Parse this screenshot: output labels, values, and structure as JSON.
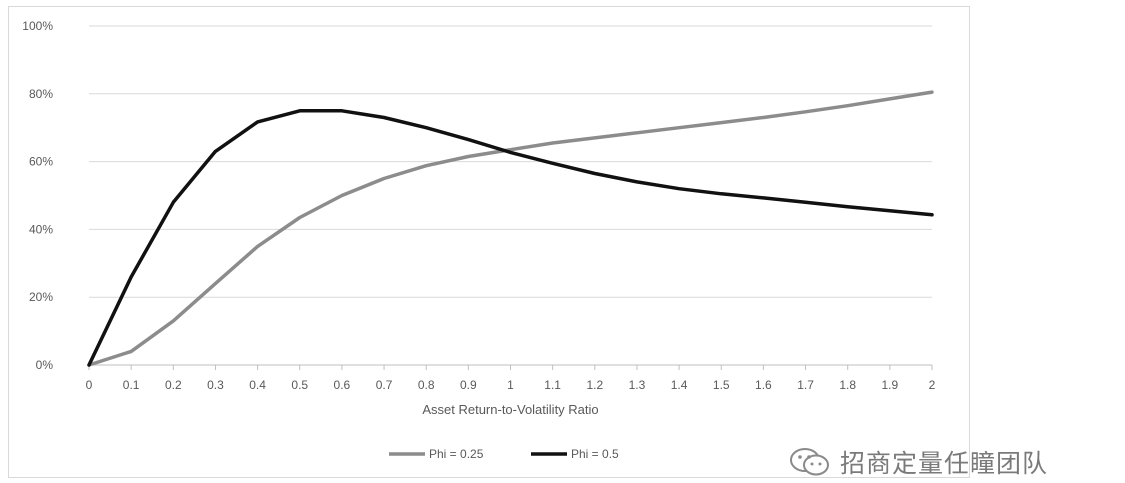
{
  "chart_data": {
    "type": "line",
    "title": "",
    "xlabel": "Asset Return-to-Volatility Ratio",
    "ylabel": "",
    "x": [
      0,
      0.1,
      0.2,
      0.3,
      0.4,
      0.5,
      0.6,
      0.7,
      0.8,
      0.9,
      1,
      1.1,
      1.2,
      1.3,
      1.4,
      1.5,
      1.6,
      1.7,
      1.8,
      1.9,
      2
    ],
    "x_tick_labels": [
      "0",
      "0.1",
      "0.2",
      "0.3",
      "0.4",
      "0.5",
      "0.6",
      "0.7",
      "0.8",
      "0.9",
      "1",
      "1.1",
      "1.2",
      "1.3",
      "1.4",
      "1.5",
      "1.6",
      "1.7",
      "1.8",
      "1.9",
      "2"
    ],
    "ylim": [
      0,
      100
    ],
    "y_ticks": [
      0,
      20,
      40,
      60,
      80,
      100
    ],
    "y_tick_labels": [
      "0%",
      "20%",
      "40%",
      "60%",
      "80%",
      "100%"
    ],
    "grid": true,
    "legend_position": "bottom",
    "series": [
      {
        "name": "Phi = 0.25",
        "color": "#8c8c8c",
        "values": [
          0,
          4,
          13,
          24,
          35,
          43.5,
          50,
          55,
          58.8,
          61.5,
          63.5,
          65.5,
          67,
          68.5,
          70,
          71.5,
          73,
          74.7,
          76.5,
          78.5,
          80.5
        ]
      },
      {
        "name": "Phi = 0.5",
        "color": "#111111",
        "values": [
          0,
          26,
          48,
          63,
          71.7,
          75,
          75,
          73,
          70,
          66.5,
          62.7,
          59.5,
          56.5,
          54,
          52,
          50.5,
          49.3,
          48,
          46.7,
          45.5,
          44.3
        ]
      }
    ]
  },
  "watermark": {
    "text": "招商定量任瞳团队",
    "icon": "wechat-icon"
  }
}
